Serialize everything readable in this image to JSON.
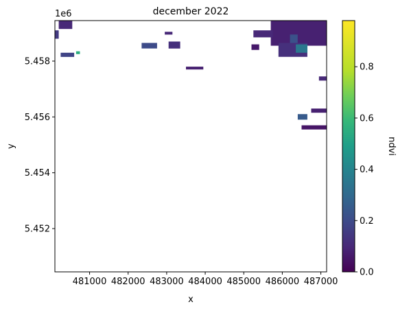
{
  "chart_data": {
    "type": "heatmap",
    "title": "december 2022",
    "xlabel": "x",
    "ylabel": "y",
    "y_offset_label": "1e6",
    "xlim": [
      480100,
      487150
    ],
    "ylim": [
      5.45045,
      5.45945
    ],
    "x_ticks": [
      {
        "value": 481000,
        "label": "481000"
      },
      {
        "value": 482000,
        "label": "482000"
      },
      {
        "value": 483000,
        "label": "483000"
      },
      {
        "value": 484000,
        "label": "484000"
      },
      {
        "value": 485000,
        "label": "485000"
      },
      {
        "value": 486000,
        "label": "486000"
      },
      {
        "value": 487000,
        "label": "487000"
      }
    ],
    "y_ticks": [
      {
        "value": 5.452,
        "label": "5.452"
      },
      {
        "value": 5.454,
        "label": "5.454"
      },
      {
        "value": 5.456,
        "label": "5.456"
      },
      {
        "value": 5.458,
        "label": "5.458"
      }
    ],
    "colorbar": {
      "label": "ndvi",
      "colormap": "viridis",
      "range": [
        0.0,
        0.98
      ],
      "ticks": [
        {
          "value": 0.0,
          "label": "0.0"
        },
        {
          "value": 0.2,
          "label": "0.2"
        },
        {
          "value": 0.4,
          "label": "0.4"
        },
        {
          "value": 0.6,
          "label": "0.6"
        },
        {
          "value": 0.8,
          "label": "0.8"
        }
      ]
    },
    "patches": [
      {
        "x": [
          485700,
          487150
        ],
        "y": [
          5.45855,
          5.45945
        ],
        "ndvi": 0.08
      },
      {
        "x": [
          485900,
          486650
        ],
        "y": [
          5.45815,
          5.45865
        ],
        "ndvi": 0.12
      },
      {
        "x": [
          486350,
          486650
        ],
        "y": [
          5.4583,
          5.4586
        ],
        "ndvi": 0.35
      },
      {
        "x": [
          486200,
          486400
        ],
        "y": [
          5.45865,
          5.45895
        ],
        "ndvi": 0.22
      },
      {
        "x": [
          480200,
          480550
        ],
        "y": [
          5.45915,
          5.45945
        ],
        "ndvi": 0.1
      },
      {
        "x": [
          480100,
          480200
        ],
        "y": [
          5.4588,
          5.4591
        ],
        "ndvi": 0.15
      },
      {
        "x": [
          480250,
          480600
        ],
        "y": [
          5.45815,
          5.4583
        ],
        "ndvi": 0.18
      },
      {
        "x": [
          482350,
          482750
        ],
        "y": [
          5.45845,
          5.45865
        ],
        "ndvi": 0.2
      },
      {
        "x": [
          483050,
          483350
        ],
        "y": [
          5.45845,
          5.4587
        ],
        "ndvi": 0.12
      },
      {
        "x": [
          482950,
          483150
        ],
        "y": [
          5.45895,
          5.45905
        ],
        "ndvi": 0.1
      },
      {
        "x": [
          483500,
          483950
        ],
        "y": [
          5.4577,
          5.4578
        ],
        "ndvi": 0.08
      },
      {
        "x": [
          485250,
          485750
        ],
        "y": [
          5.45885,
          5.4591
        ],
        "ndvi": 0.1
      },
      {
        "x": [
          485200,
          485400
        ],
        "y": [
          5.4584,
          5.4586
        ],
        "ndvi": 0.06
      },
      {
        "x": [
          486950,
          487150
        ],
        "y": [
          5.4573,
          5.45745
        ],
        "ndvi": 0.1
      },
      {
        "x": [
          486400,
          486650
        ],
        "y": [
          5.4559,
          5.4561
        ],
        "ndvi": 0.25
      },
      {
        "x": [
          486750,
          487150
        ],
        "y": [
          5.45615,
          5.4563
        ],
        "ndvi": 0.08
      },
      {
        "x": [
          486500,
          487150
        ],
        "y": [
          5.45555,
          5.4557
        ],
        "ndvi": 0.05
      },
      {
        "x": [
          480650,
          480750
        ],
        "y": [
          5.45825,
          5.45835
        ],
        "ndvi": 0.55
      }
    ]
  }
}
